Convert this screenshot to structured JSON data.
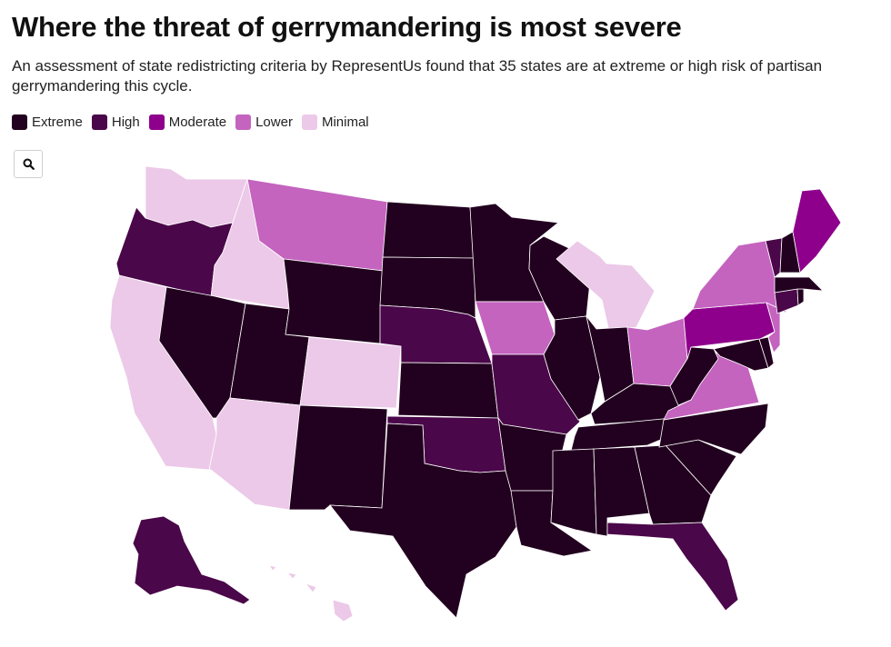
{
  "title": "Where the threat of gerrymandering is most severe",
  "subtitle": "An assessment of state redistricting criteria by RepresentUs found that 35 states are at extreme or high risk of partisan gerrymandering this cycle.",
  "legend": [
    {
      "label": "Extreme",
      "color": "#22001f"
    },
    {
      "label": "High",
      "color": "#4a0749"
    },
    {
      "label": "Moderate",
      "color": "#8e008c"
    },
    {
      "label": "Lower",
      "color": "#c464bf"
    },
    {
      "label": "Minimal",
      "color": "#ecc9e8"
    }
  ],
  "zoom_icon": "search-icon",
  "map_data": {
    "type": "choropleth",
    "region": "United States",
    "categories": [
      "Extreme",
      "High",
      "Moderate",
      "Lower",
      "Minimal"
    ],
    "states": {
      "Washington": "Minimal",
      "Oregon": "High",
      "California": "Minimal",
      "Idaho": "Minimal",
      "Nevada": "Extreme",
      "Utah": "Extreme",
      "Arizona": "Minimal",
      "Montana": "Lower",
      "Wyoming": "Extreme",
      "Colorado": "Minimal",
      "New Mexico": "Extreme",
      "North Dakota": "Extreme",
      "South Dakota": "Extreme",
      "Nebraska": "High",
      "Kansas": "Extreme",
      "Oklahoma": "High",
      "Texas": "Extreme",
      "Minnesota": "Extreme",
      "Iowa": "Lower",
      "Missouri": "High",
      "Arkansas": "Extreme",
      "Louisiana": "Extreme",
      "Wisconsin": "Extreme",
      "Illinois": "Extreme",
      "Michigan": "Minimal",
      "Indiana": "Extreme",
      "Ohio": "Lower",
      "Kentucky": "Extreme",
      "Tennessee": "Extreme",
      "Mississippi": "Extreme",
      "Alabama": "Extreme",
      "Georgia": "Extreme",
      "Florida": "High",
      "South Carolina": "Extreme",
      "North Carolina": "Extreme",
      "Virginia": "Lower",
      "West Virginia": "Extreme",
      "Maryland": "Extreme",
      "Delaware": "Extreme",
      "Pennsylvania": "Moderate",
      "New Jersey": "Lower",
      "New York": "Lower",
      "Connecticut": "High",
      "Rhode Island": "Extreme",
      "Massachusetts": "Extreme",
      "Vermont": "High",
      "New Hampshire": "Extreme",
      "Maine": "Moderate",
      "Alaska": "High",
      "Hawaii": "Minimal"
    }
  }
}
